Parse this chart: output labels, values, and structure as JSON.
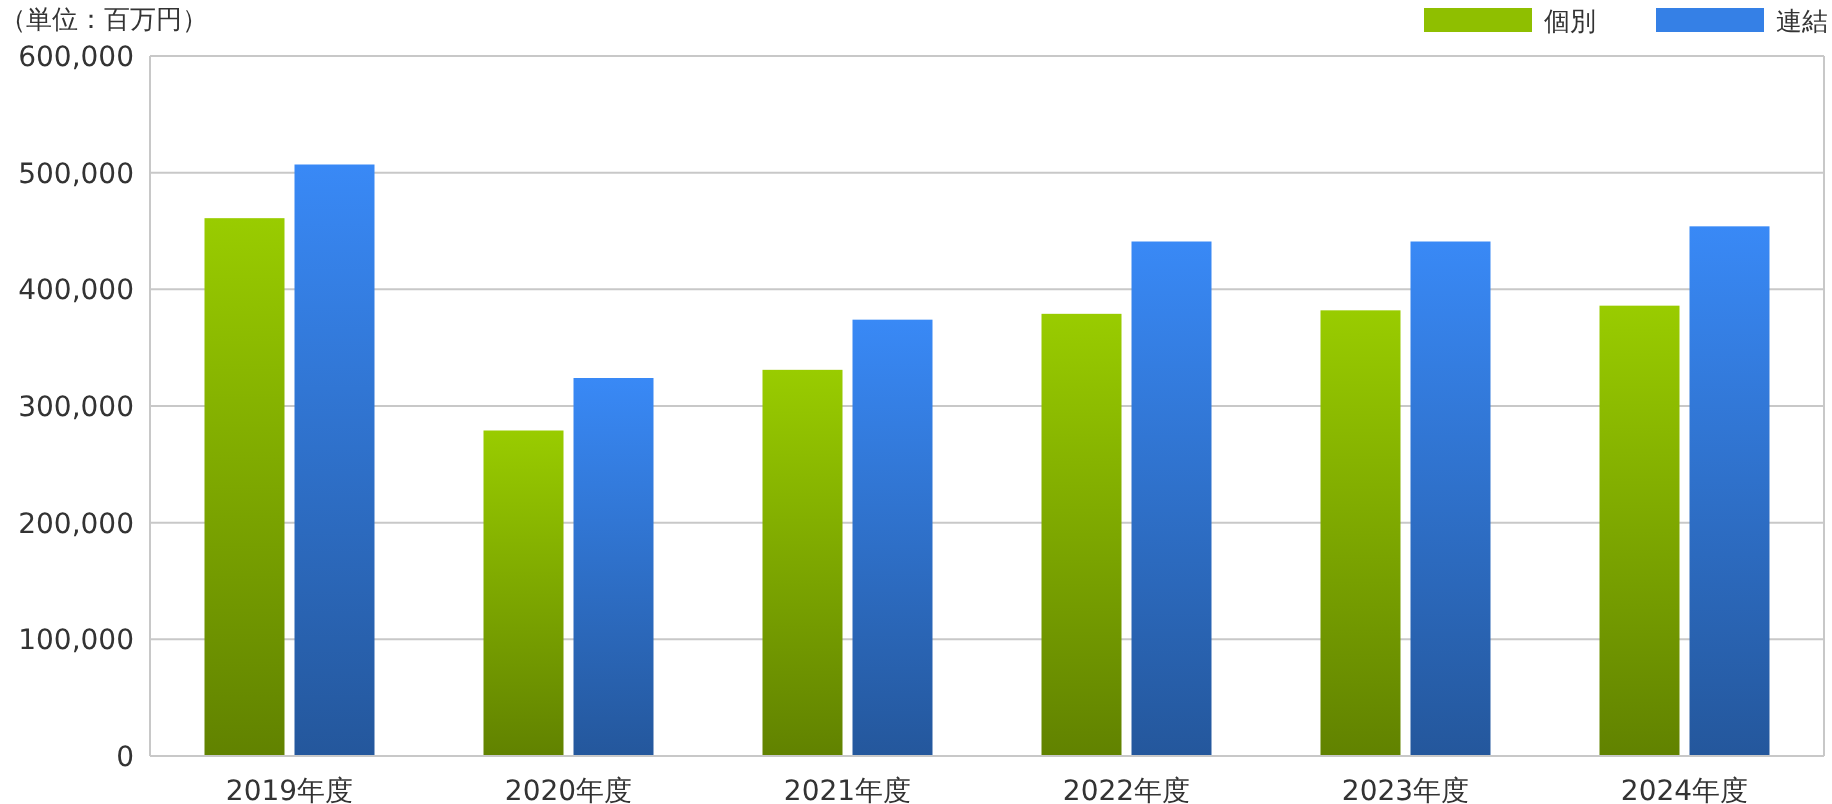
{
  "chart_data": {
    "type": "bar",
    "annotations": [
      "（単位：百万円）"
    ],
    "categories": [
      "2019年度",
      "2020年度",
      "2021年度",
      "2022年度",
      "2023年度",
      "2024年度"
    ],
    "series": [
      {
        "name": "個別",
        "color": "#8fbf00",
        "values": [
          461000,
          279000,
          331000,
          379000,
          382000,
          386000
        ]
      },
      {
        "name": "連結",
        "color": "#3580e6",
        "values": [
          507000,
          324000,
          374000,
          441000,
          441000,
          454000
        ]
      }
    ],
    "ylim": [
      0,
      600000
    ],
    "yticks": [
      {
        "value": 0,
        "label": "0"
      },
      {
        "value": 100000,
        "label": "100,000"
      },
      {
        "value": 200000,
        "label": "200,000"
      },
      {
        "value": 300000,
        "label": "300,000"
      },
      {
        "value": 400000,
        "label": "400,000"
      },
      {
        "value": 500000,
        "label": "500,000"
      },
      {
        "value": 600000,
        "label": "600,000"
      }
    ],
    "grid": "y",
    "legend": "top right"
  }
}
